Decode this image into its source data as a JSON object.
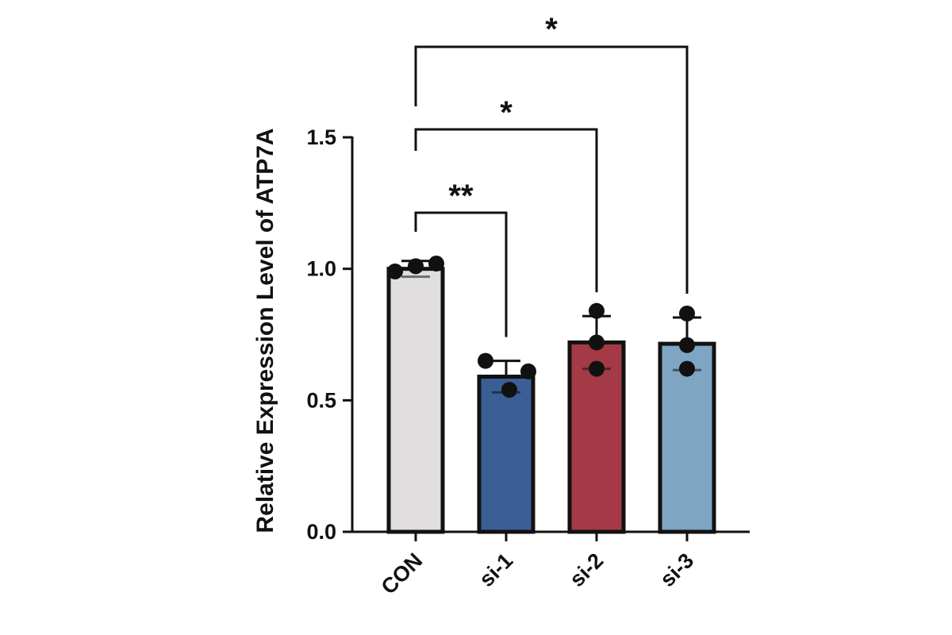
{
  "chart_data": {
    "type": "bar",
    "title": "",
    "xlabel": "",
    "ylabel": "Relative Expression Level of ATP7A",
    "ylim": [
      0,
      1.5
    ],
    "yticks": [
      0.0,
      0.5,
      1.0,
      1.5
    ],
    "ytick_labels": [
      "0.0",
      "0.5",
      "1.0",
      "1.5"
    ],
    "categories": [
      "CON",
      "si-1",
      "si-2",
      "si-3"
    ],
    "values": [
      1.0,
      0.59,
      0.72,
      0.715
    ],
    "errors": [
      0.03,
      0.06,
      0.1,
      0.1
    ],
    "points": [
      [
        0.99,
        1.01,
        1.02
      ],
      [
        0.65,
        0.54,
        0.61
      ],
      [
        0.84,
        0.72,
        0.62
      ],
      [
        0.83,
        0.71,
        0.62
      ]
    ],
    "bar_colors": [
      "#e0dedf",
      "#3b5e95",
      "#a33a45",
      "#7ea5c1"
    ],
    "comparisons": [
      {
        "from": 0,
        "to": 1,
        "label": "**"
      },
      {
        "from": 0,
        "to": 2,
        "label": "*"
      },
      {
        "from": 0,
        "to": 3,
        "label": "*"
      }
    ],
    "grid": false,
    "legend": "none"
  }
}
